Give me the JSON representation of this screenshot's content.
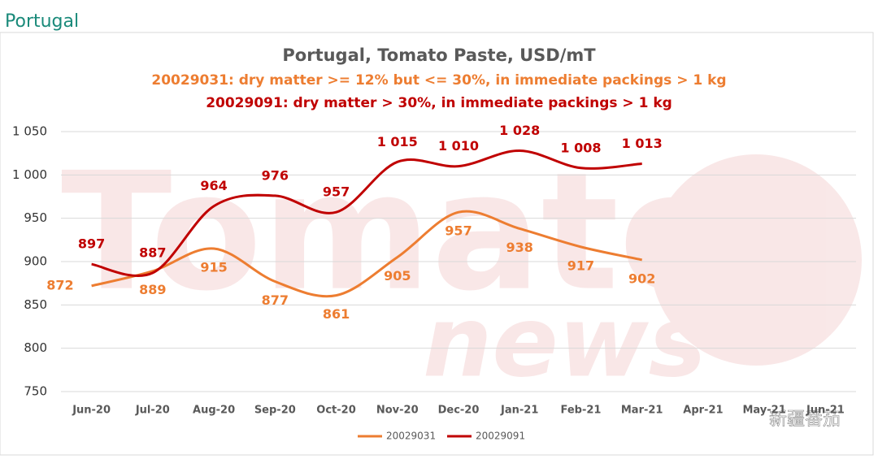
{
  "header": {
    "title": "Portugal"
  },
  "watermark": {
    "logo": [
      "Tomato",
      "news"
    ],
    "account": "新疆番茄"
  },
  "chart_data": {
    "type": "line",
    "title": "Portugal, Tomato Paste, USD/mT",
    "subtitles": [
      "20029031: dry matter >= 12% but <= 30%, in immediate packings > 1 kg",
      "20029091: dry matter > 30%, in immediate packings > 1 kg"
    ],
    "categories": [
      "Jun-20",
      "Jul-20",
      "Aug-20",
      "Sep-20",
      "Oct-20",
      "Nov-20",
      "Dec-20",
      "Jan-21",
      "Feb-21",
      "Mar-21",
      "Apr-21",
      "May-21",
      "Jun-21"
    ],
    "series": [
      {
        "name": "20029031",
        "color": "#ed7d31",
        "values": [
          872,
          889,
          915,
          877,
          861,
          905,
          957,
          938,
          917,
          902,
          null,
          null,
          null
        ]
      },
      {
        "name": "20029091",
        "color": "#c00000",
        "values": [
          897,
          887,
          964,
          976,
          957,
          1015,
          1010,
          1028,
          1008,
          1013,
          null,
          null,
          null
        ],
        "value_labels": [
          "897",
          "887",
          "964",
          "976",
          "957",
          "1 015",
          "1 010",
          "1 028",
          "1 008",
          "1 013",
          null,
          null,
          null
        ]
      }
    ],
    "ylim": [
      750,
      1050
    ],
    "yticks": [
      750,
      800,
      850,
      900,
      950,
      {
        "value": 1000,
        "label": "1 000"
      },
      {
        "value": 1050,
        "label": "1 050"
      }
    ],
    "grid": true,
    "legend": "bottom"
  }
}
